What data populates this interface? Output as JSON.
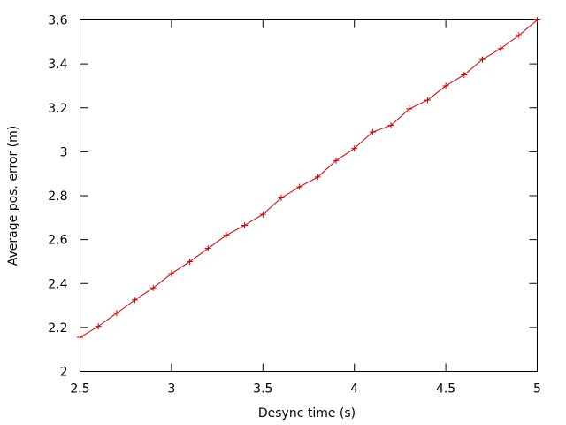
{
  "chart_data": {
    "type": "line",
    "title": "",
    "xlabel": "Desync time (s)",
    "ylabel": "Average pos. error (m)",
    "xlim": [
      2.5,
      5
    ],
    "ylim": [
      2,
      3.6
    ],
    "grid": false,
    "legend": "none",
    "xticks": [
      2.5,
      3,
      3.5,
      4,
      4.5,
      5
    ],
    "xtick_labels": [
      "2.5",
      "3",
      "3.5",
      "4",
      "4.5",
      "5"
    ],
    "yticks": [
      2,
      2.2,
      2.4,
      2.6,
      2.8,
      3,
      3.2,
      3.4,
      3.6
    ],
    "ytick_labels": [
      "2",
      "2.2",
      "2.4",
      "2.6",
      "2.8",
      "3",
      "3.2",
      "3.4",
      "3.6"
    ],
    "series": [
      {
        "name": "Average pos. error",
        "color": "#cc0000",
        "marker": "plus",
        "x": [
          2.5,
          2.6,
          2.7,
          2.8,
          2.9,
          3.0,
          3.1,
          3.2,
          3.3,
          3.4,
          3.5,
          3.6,
          3.7,
          3.8,
          3.9,
          4.0,
          4.1,
          4.2,
          4.3,
          4.4,
          4.5,
          4.6,
          4.7,
          4.8,
          4.9,
          5.0
        ],
        "values": [
          2.155,
          2.205,
          2.265,
          2.325,
          2.38,
          2.445,
          2.5,
          2.56,
          2.62,
          2.665,
          2.715,
          2.79,
          2.84,
          2.885,
          2.96,
          3.015,
          3.09,
          3.12,
          3.195,
          3.235,
          3.3,
          3.35,
          3.42,
          3.47,
          3.53,
          3.6
        ]
      }
    ]
  }
}
